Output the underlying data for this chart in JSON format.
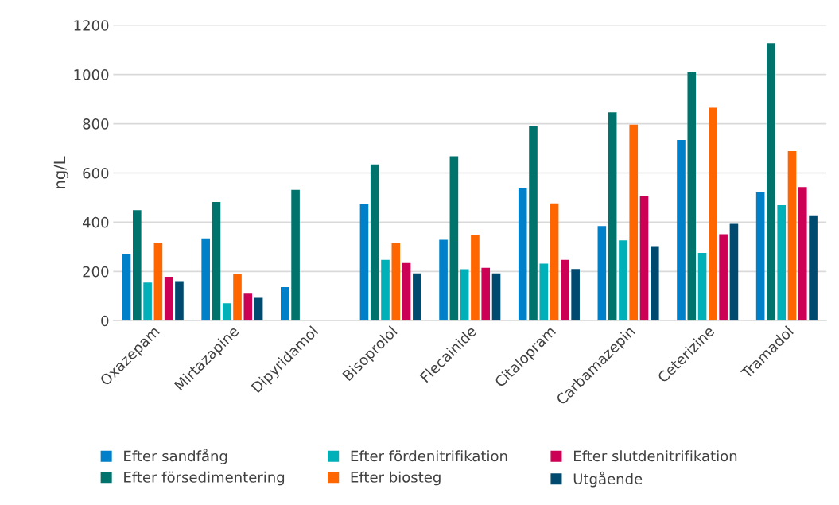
{
  "chart_data": {
    "type": "bar",
    "ylabel": "ng/L",
    "categories": [
      "Oxazepam",
      "Mirtazapine",
      "Dipyridamol",
      "Bisoprolol",
      "Flecainide",
      "Citalopram",
      "Carbamazepin",
      "Ceterizine",
      "Tramadol"
    ],
    "series": [
      {
        "name": "Efter sandfång",
        "color": "#0080c8",
        "values": [
          271,
          334,
          136,
          472,
          329,
          538,
          384,
          734,
          522
        ]
      },
      {
        "name": "Efter försedimentering",
        "color": "#00736c",
        "values": [
          449,
          482,
          531,
          635,
          668,
          792,
          846,
          1009,
          1127
        ]
      },
      {
        "name": "Efter fördenitrifikation",
        "color": "#00b0b9",
        "values": [
          155,
          71,
          null,
          247,
          209,
          232,
          326,
          275,
          469
        ]
      },
      {
        "name": "Efter biosteg",
        "color": "#ff6600",
        "values": [
          317,
          191,
          null,
          316,
          350,
          476,
          796,
          865,
          689
        ]
      },
      {
        "name": "Efter slutdenitrifikation",
        "color": "#cc0055",
        "values": [
          178,
          110,
          null,
          234,
          215,
          247,
          506,
          351,
          543
        ]
      },
      {
        "name": "Utgående",
        "color": "#004a70",
        "values": [
          161,
          93,
          null,
          192,
          192,
          210,
          303,
          393,
          428
        ]
      }
    ],
    "ylim": [
      0,
      1200
    ],
    "yticks": [
      0,
      200,
      400,
      600,
      800,
      1000,
      1200
    ],
    "grid": "y",
    "legend": "bottom"
  }
}
